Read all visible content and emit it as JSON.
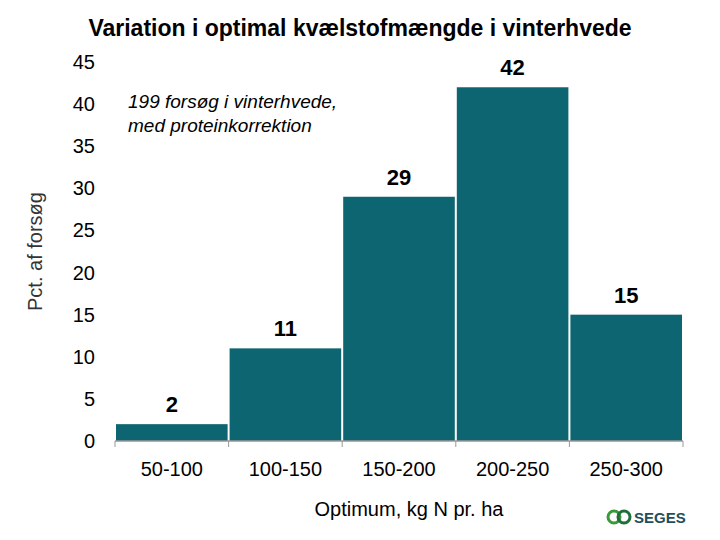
{
  "chart_data": {
    "type": "bar",
    "title": "Variation i optimal kvælstofmængde i vinterhvede",
    "x_label": "Optimum, kg N pr. ha",
    "y_label": "Pct.  af forsøg",
    "annotations": [
      "199 forsøg i vinterhvede,",
      "med proteinkorrektion"
    ],
    "logo": "SEGES",
    "categories": [
      "50-100",
      "100-150",
      "150-200",
      "200-250",
      "250-300"
    ],
    "values": [
      2,
      11,
      29,
      42,
      15
    ],
    "color": "#0d6571",
    "ylim": [
      0,
      45
    ],
    "yticks": [
      0,
      5,
      10,
      15,
      20,
      25,
      30,
      35,
      40,
      45
    ],
    "grid": false,
    "data_labels": true
  }
}
